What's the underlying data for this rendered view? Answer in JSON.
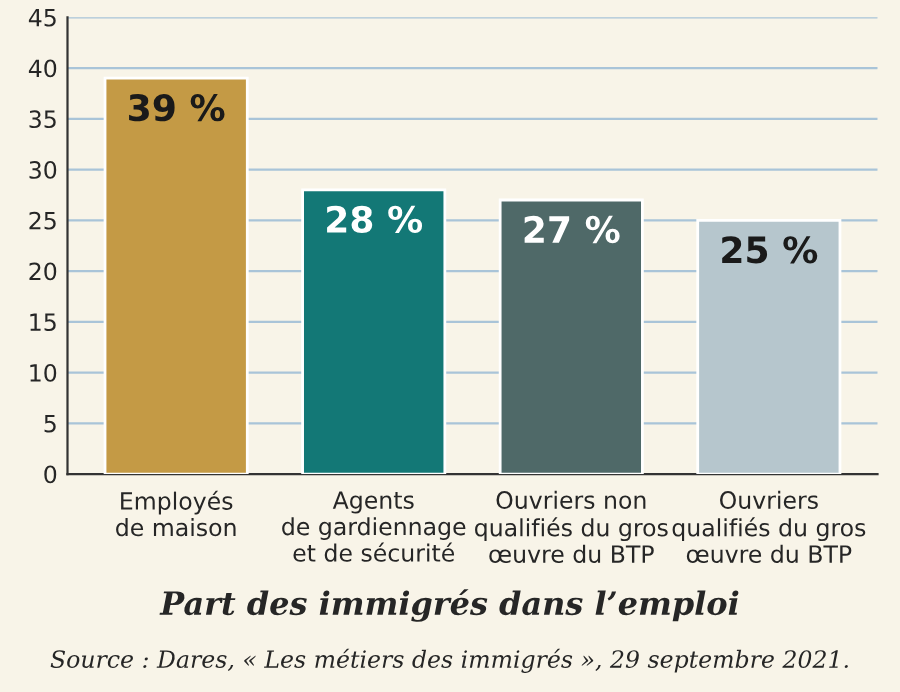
{
  "chart_data": {
    "type": "bar",
    "title": "Part des immigrés dans l’emploi",
    "categories": [
      "Employés\nde maison",
      "Agents\nde gardiennage\net de sécurité",
      "Ouvriers non\nqualifiés du gros\nœuvre du BTP",
      "Ouvriers\nqualifiés du gros\nœuvre du BTP"
    ],
    "values": [
      39,
      28,
      27,
      25
    ],
    "value_labels": [
      "39 %",
      "28 %",
      "27 %",
      "25 %"
    ],
    "colors": [
      "#c49a45",
      "#137876",
      "#4f6968",
      "#b6c6cd"
    ],
    "ylim": [
      0,
      45
    ],
    "yticks": [
      0,
      5,
      10,
      15,
      20,
      25,
      30,
      35,
      40,
      45
    ],
    "grid": "y",
    "annotations": [
      "Source : Dares, « Les métiers des immigrés », 29 septembre 2021."
    ]
  }
}
